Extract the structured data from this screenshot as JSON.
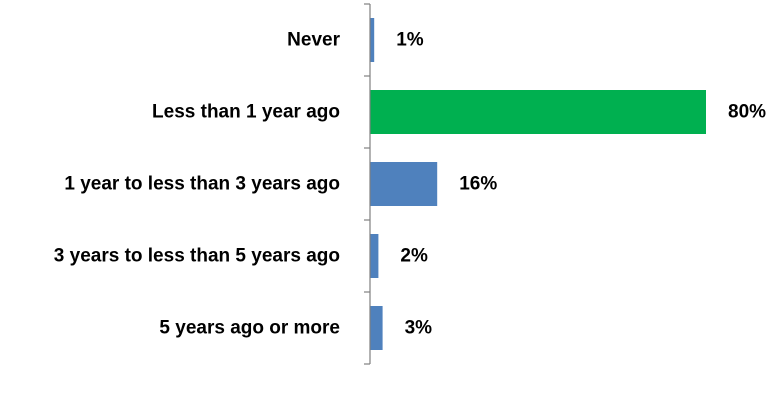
{
  "chart_data": {
    "type": "bar",
    "orientation": "horizontal",
    "title": "",
    "xlabel": "",
    "ylabel": "",
    "categories": [
      "Never",
      "Less than 1 year ago",
      "1 year to less than 3 years ago",
      "3 years to less than 5 years ago",
      "5 years ago or more"
    ],
    "values": [
      1,
      80,
      16,
      2,
      3
    ],
    "value_labels": [
      "1%",
      "80%",
      "16%",
      "2%",
      "3%"
    ],
    "unit": "%",
    "bar_colors": [
      "#4f81bd",
      "#00b050",
      "#4f81bd",
      "#4f81bd",
      "#4f81bd"
    ],
    "xlim": [
      0,
      100
    ],
    "grid": false,
    "legend": "none"
  }
}
